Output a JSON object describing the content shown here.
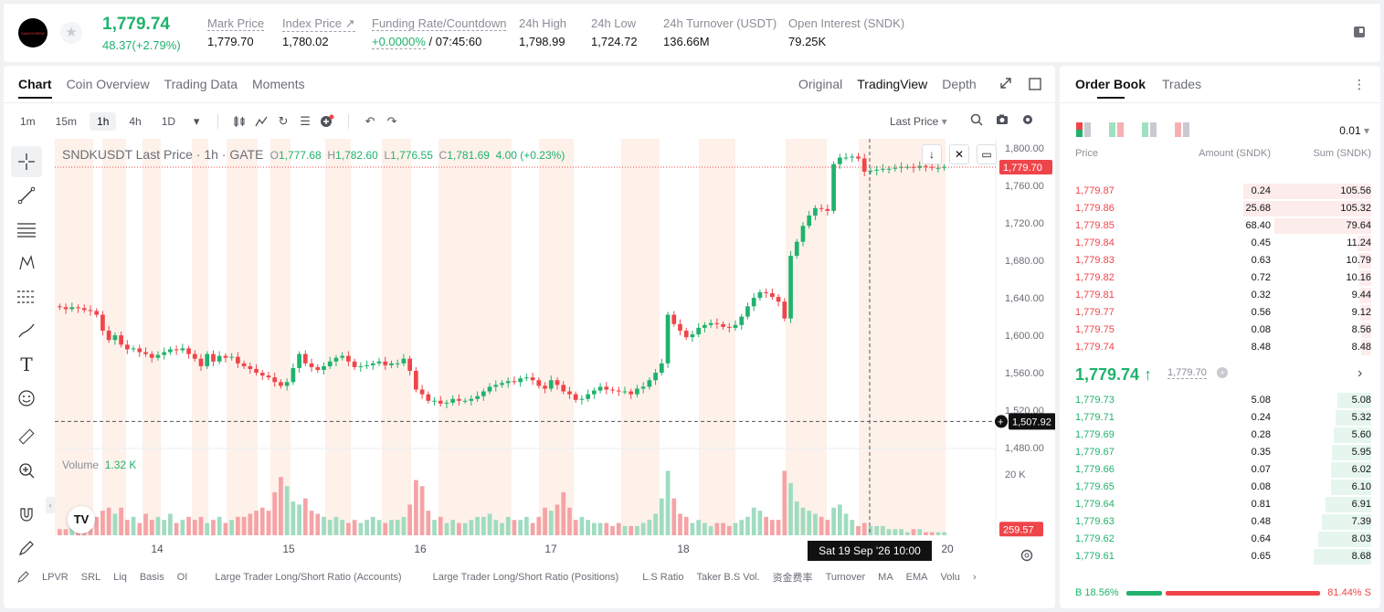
{
  "header": {
    "price": "1,779.74",
    "change": "48.37(+2.79%)",
    "logo_text": "SANDSHREW",
    "stats": [
      {
        "label": "Mark Price",
        "value": "1,779.70",
        "dotted": true
      },
      {
        "label": "Index Price ↗",
        "value": "1,780.02",
        "dotted": true
      },
      {
        "label": "Funding Rate/Countdown",
        "value_green": "+0.0000%",
        "value": " / 07:45:60",
        "dotted": true
      },
      {
        "label": "24h High",
        "value": "1,798.99"
      },
      {
        "label": "24h Low",
        "value": "1,724.72"
      },
      {
        "label": "24h Turnover (USDT)",
        "value": "136.66M"
      },
      {
        "label": "Open Interest (SNDK)",
        "value": "79.25K"
      }
    ]
  },
  "chart_tabs": [
    "Chart",
    "Coin Overview",
    "Trading Data",
    "Moments"
  ],
  "view_tabs": [
    "Original",
    "TradingView",
    "Depth"
  ],
  "timeframes": [
    "1m",
    "15m",
    "1h",
    "4h",
    "1D"
  ],
  "active_timeframe": "1h",
  "price_source": "Last Price",
  "legend": {
    "symbol": "SNDKUSDT Last Price · 1h · GATE",
    "o_lbl": "O",
    "o": "1,777.68",
    "h_lbl": "H",
    "h": "1,782.60",
    "l_lbl": "L",
    "l": "1,776.55",
    "c_lbl": "C",
    "c": "1,781.69",
    "chg": "4.00 (+0.23%)"
  },
  "volume_legend": {
    "label": "Volume",
    "value": "1.32 K"
  },
  "indicators": [
    "LPVR",
    "SRL",
    "Liq",
    "Basis",
    "OI",
    "Large Trader Long/Short Ratio (Accounts)",
    "Large Trader Long/Short Ratio (Positions)",
    "L.S Ratio",
    "Taker B.S Vol.",
    "资金费率",
    "Turnover",
    "MA",
    "EMA",
    "Volu"
  ],
  "chart_data": {
    "type": "candlestick",
    "interval": "1h",
    "ylim": [
      1480,
      1810
    ],
    "price_ticks": [
      "1,800.00",
      "1,760.00",
      "1,720.00",
      "1,680.00",
      "1,640.00",
      "1,600.00",
      "1,560.00",
      "1,520.00",
      "1,480.00"
    ],
    "volume_tick": "20 K",
    "date_ticks": [
      "14",
      "15",
      "16",
      "17",
      "18",
      "20"
    ],
    "last_price_label": "1,779.70",
    "crosshair_price_label": "1,507.92",
    "crosshair_time_label": "Sat 19 Sep '26   10:00",
    "volume_last_label": "259.57",
    "closes": [
      1630,
      1628,
      1630,
      1629,
      1627,
      1626,
      1622,
      1605,
      1595,
      1600,
      1590,
      1585,
      1586,
      1582,
      1580,
      1576,
      1579,
      1582,
      1585,
      1584,
      1586,
      1580,
      1575,
      1567,
      1580,
      1572,
      1578,
      1576,
      1577,
      1570,
      1567,
      1564,
      1560,
      1557,
      1555,
      1550,
      1546,
      1550,
      1565,
      1580,
      1570,
      1566,
      1563,
      1567,
      1572,
      1576,
      1578,
      1572,
      1566,
      1567,
      1568,
      1570,
      1572,
      1568,
      1570,
      1570,
      1575,
      1562,
      1542,
      1537,
      1530,
      1530,
      1527,
      1528,
      1532,
      1530,
      1530,
      1532,
      1535,
      1540,
      1545,
      1547,
      1549,
      1551,
      1550,
      1554,
      1555,
      1552,
      1546,
      1543,
      1552,
      1547,
      1540,
      1537,
      1531,
      1532,
      1537,
      1541,
      1545,
      1542,
      1541,
      1540,
      1540,
      1537,
      1543,
      1545,
      1552,
      1560,
      1570,
      1622,
      1612,
      1605,
      1598,
      1601,
      1608,
      1611,
      1613,
      1612,
      1609,
      1608,
      1611,
      1620,
      1631,
      1640,
      1646,
      1645,
      1641,
      1636,
      1618,
      1685,
      1700,
      1717,
      1728,
      1736,
      1735,
      1733,
      1783,
      1790,
      1790,
      1791,
      1789,
      1775,
      1776,
      1777,
      1778,
      1778,
      1779,
      1780,
      1780,
      1779,
      1781,
      1780,
      1779,
      1779,
      1780
    ],
    "volumes": [
      2,
      2,
      3,
      3,
      2,
      3,
      6,
      8,
      9,
      7,
      9,
      5,
      6,
      4,
      7,
      5,
      6,
      5,
      7,
      4,
      5,
      6,
      5,
      6,
      4,
      5,
      6,
      4,
      5,
      6,
      6,
      7,
      8,
      9,
      8,
      14,
      19,
      16,
      11,
      10,
      12,
      8,
      7,
      6,
      5,
      6,
      5,
      4,
      5,
      4,
      5,
      6,
      5,
      4,
      5,
      5,
      6,
      10,
      18,
      16,
      8,
      5,
      6,
      4,
      5,
      4,
      4,
      5,
      6,
      6,
      7,
      5,
      4,
      6,
      5,
      5,
      6,
      4,
      6,
      9,
      8,
      10,
      14,
      9,
      5,
      6,
      5,
      4,
      4,
      4,
      3,
      4,
      3,
      3,
      3,
      4,
      5,
      7,
      12,
      21,
      12,
      7,
      6,
      4,
      5,
      4,
      3,
      4,
      4,
      3,
      4,
      5,
      6,
      9,
      8,
      6,
      5,
      5,
      21,
      17,
      11,
      9,
      8,
      7,
      6,
      5,
      9,
      10,
      7,
      5,
      3,
      4,
      3,
      3,
      3,
      2,
      2,
      2,
      1,
      2,
      2,
      1,
      1,
      1,
      1
    ]
  },
  "orderbook": {
    "tabs": [
      "Order Book",
      "Trades"
    ],
    "precision": "0.01",
    "headers": [
      "Price",
      "Amount (SNDK)",
      "Sum (SNDK)"
    ],
    "asks": [
      [
        "1,779.87",
        "0.24",
        "105.56"
      ],
      [
        "1,779.86",
        "25.68",
        "105.32"
      ],
      [
        "1,779.85",
        "68.40",
        "79.64"
      ],
      [
        "1,779.84",
        "0.45",
        "11.24"
      ],
      [
        "1,779.83",
        "0.63",
        "10.79"
      ],
      [
        "1,779.82",
        "0.72",
        "10.16"
      ],
      [
        "1,779.81",
        "0.32",
        "9.44"
      ],
      [
        "1,779.77",
        "0.56",
        "9.12"
      ],
      [
        "1,779.75",
        "0.08",
        "8.56"
      ],
      [
        "1,779.74",
        "8.48",
        "8.48"
      ]
    ],
    "last": "1,779.74 ↑",
    "mark": "1,779.70",
    "bids": [
      [
        "1,779.73",
        "5.08",
        "5.08"
      ],
      [
        "1,779.71",
        "0.24",
        "5.32"
      ],
      [
        "1,779.69",
        "0.28",
        "5.60"
      ],
      [
        "1,779.67",
        "0.35",
        "5.95"
      ],
      [
        "1,779.66",
        "0.07",
        "6.02"
      ],
      [
        "1,779.65",
        "0.08",
        "6.10"
      ],
      [
        "1,779.64",
        "0.81",
        "6.91"
      ],
      [
        "1,779.63",
        "0.48",
        "7.39"
      ],
      [
        "1,779.62",
        "0.64",
        "8.03"
      ],
      [
        "1,779.61",
        "0.65",
        "8.68"
      ]
    ],
    "buy_ratio": "18.56%",
    "sell_ratio": "81.44%",
    "buy_label": "B",
    "sell_label": "S"
  },
  "colors": {
    "up": "#20b26c",
    "down": "#ef454a"
  }
}
